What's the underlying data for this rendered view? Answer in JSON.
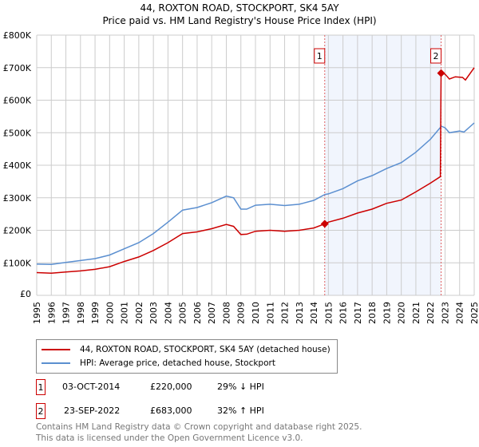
{
  "chart_data": {
    "type": "line",
    "title": "44, ROXTON ROAD, STOCKPORT, SK4 5AY",
    "subtitle": "Price paid vs. HM Land Registry's House Price Index (HPI)",
    "xlim": [
      1995,
      2025
    ],
    "ylim": [
      0,
      800000
    ],
    "x_ticks": [
      "1995",
      "1996",
      "1997",
      "1998",
      "1999",
      "2000",
      "2001",
      "2002",
      "2003",
      "2004",
      "2005",
      "2006",
      "2007",
      "2008",
      "2009",
      "2010",
      "2011",
      "2012",
      "2013",
      "2014",
      "2015",
      "2016",
      "2017",
      "2018",
      "2019",
      "2020",
      "2021",
      "2022",
      "2023",
      "2024",
      "2025"
    ],
    "y_ticks": [
      "£0",
      "£100K",
      "£200K",
      "£300K",
      "£400K",
      "£500K",
      "£600K",
      "£700K",
      "£800K"
    ],
    "grid": true,
    "series": [
      {
        "name": "44, ROXTON ROAD, STOCKPORT, SK4 5AY (detached house)",
        "color": "#cc0000",
        "points": [
          [
            1995,
            70000
          ],
          [
            1996,
            68000
          ],
          [
            1997,
            72000
          ],
          [
            1998,
            75000
          ],
          [
            1999,
            80000
          ],
          [
            2000,
            88000
          ],
          [
            2001,
            104000
          ],
          [
            2002,
            118000
          ],
          [
            2003,
            138000
          ],
          [
            2004,
            162000
          ],
          [
            2005,
            190000
          ],
          [
            2006,
            195000
          ],
          [
            2007,
            205000
          ],
          [
            2008,
            218000
          ],
          [
            2008.5,
            212000
          ],
          [
            2009,
            187000
          ],
          [
            2009.4,
            188000
          ],
          [
            2010,
            197000
          ],
          [
            2011,
            200000
          ],
          [
            2012,
            197000
          ],
          [
            2013,
            200000
          ],
          [
            2014,
            207000
          ],
          [
            2014.75,
            220000
          ],
          [
            2015,
            225000
          ],
          [
            2016,
            237000
          ],
          [
            2017,
            253000
          ],
          [
            2018,
            265000
          ],
          [
            2019,
            283000
          ],
          [
            2020,
            293000
          ],
          [
            2021,
            318000
          ],
          [
            2022,
            345000
          ],
          [
            2022.68,
            365000
          ],
          [
            2022.73,
            683000
          ],
          [
            2023,
            680000
          ],
          [
            2023.3,
            665000
          ],
          [
            2023.7,
            672000
          ],
          [
            2024.2,
            670000
          ],
          [
            2024.4,
            662000
          ],
          [
            2025,
            700000
          ]
        ]
      },
      {
        "name": "HPI: Average price, detached house, Stockport",
        "color": "#5b8fd0",
        "points": [
          [
            1995,
            96000
          ],
          [
            1996,
            95000
          ],
          [
            1997,
            101000
          ],
          [
            1998,
            107000
          ],
          [
            1999,
            113000
          ],
          [
            2000,
            124000
          ],
          [
            2001,
            143000
          ],
          [
            2002,
            162000
          ],
          [
            2003,
            190000
          ],
          [
            2004,
            225000
          ],
          [
            2005,
            262000
          ],
          [
            2006,
            270000
          ],
          [
            2007,
            285000
          ],
          [
            2008,
            305000
          ],
          [
            2008.5,
            300000
          ],
          [
            2009,
            265000
          ],
          [
            2009.4,
            265000
          ],
          [
            2010,
            277000
          ],
          [
            2011,
            280000
          ],
          [
            2012,
            276000
          ],
          [
            2013,
            280000
          ],
          [
            2014,
            292000
          ],
          [
            2014.75,
            310000
          ],
          [
            2015,
            312000
          ],
          [
            2016,
            328000
          ],
          [
            2017,
            352000
          ],
          [
            2018,
            368000
          ],
          [
            2019,
            390000
          ],
          [
            2020,
            408000
          ],
          [
            2021,
            440000
          ],
          [
            2022,
            480000
          ],
          [
            2022.75,
            520000
          ],
          [
            2023,
            515000
          ],
          [
            2023.3,
            500000
          ],
          [
            2024,
            505000
          ],
          [
            2024.3,
            502000
          ],
          [
            2025,
            530000
          ]
        ]
      }
    ],
    "sales": [
      {
        "id": "1",
        "x": 2014.75,
        "y": 220000,
        "date": "03-OCT-2014",
        "price": "£220,000",
        "hpi": "29% ↓ HPI"
      },
      {
        "id": "2",
        "x": 2022.73,
        "y": 683000,
        "date": "23-SEP-2022",
        "price": "£683,000",
        "hpi": "32% ↑ HPI"
      }
    ]
  },
  "footer": {
    "line1": "Contains HM Land Registry data © Crown copyright and database right 2025.",
    "line2": "This data is licensed under the Open Government Licence v3.0."
  }
}
